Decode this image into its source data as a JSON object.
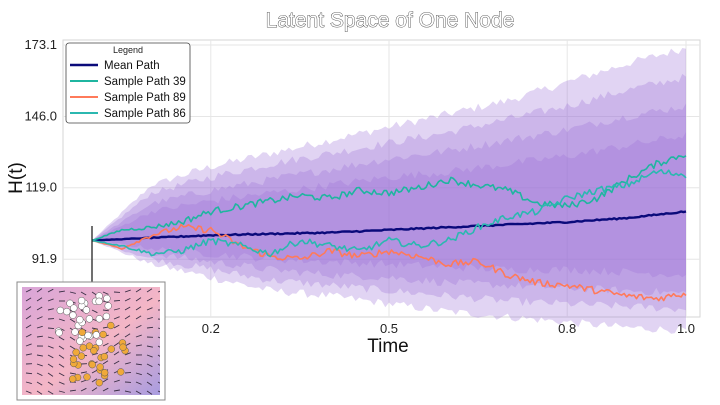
{
  "chart_data": {
    "type": "line",
    "title": "Latent Space of One Node",
    "xlabel": "Time",
    "ylabel": "H(t)",
    "xlim": [
      0.0,
      1.0
    ],
    "ylim": [
      70.0,
      175.0
    ],
    "xticks": [
      0.2,
      0.5,
      0.8,
      1.0
    ],
    "xtick_labels": [
      "0.2",
      "0.5",
      "0.8",
      "1.0"
    ],
    "yticks": [
      91.9,
      119.0,
      146.0,
      173.1
    ],
    "ytick_labels": [
      "91.9",
      "119.0",
      "146.0",
      "173.1"
    ],
    "grid": true,
    "legend": {
      "title": "Legend",
      "placement": "top-left"
    },
    "bands": {
      "color": "#9b6fd6",
      "x": [
        0.0,
        0.1,
        0.2,
        0.3,
        0.4,
        0.5,
        0.6,
        0.7,
        0.8,
        0.9,
        1.0
      ],
      "levels": [
        {
          "lower": [
            99,
            90,
            85,
            80,
            78,
            75,
            72,
            70,
            68,
            66,
            65
          ],
          "upper": [
            99,
            120,
            127,
            132,
            137,
            142,
            147,
            152,
            159,
            166,
            172
          ]
        },
        {
          "lower": [
            99,
            92,
            88,
            84,
            82,
            80,
            78,
            76,
            75,
            74,
            73
          ],
          "upper": [
            99,
            117,
            123,
            128,
            132,
            136,
            140,
            145,
            150,
            156,
            161
          ]
        },
        {
          "lower": [
            99,
            94,
            91,
            88,
            86,
            85,
            83,
            82,
            81,
            80,
            79
          ],
          "upper": [
            99,
            113,
            118,
            122,
            126,
            130,
            133,
            137,
            141,
            146,
            150
          ]
        },
        {
          "lower": [
            99,
            96,
            94,
            92,
            91,
            90,
            89,
            88,
            88,
            87,
            86
          ],
          "upper": [
            99,
            110,
            114,
            117,
            120,
            123,
            125,
            128,
            131,
            135,
            139
          ]
        }
      ]
    },
    "series": [
      {
        "name": "Mean Path",
        "color": "#0a0a7a",
        "width": 2.4,
        "x": [
          0.0,
          0.1,
          0.2,
          0.3,
          0.4,
          0.5,
          0.6,
          0.7,
          0.8,
          0.9,
          1.0
        ],
        "y": [
          99,
          100,
          101,
          101.5,
          102,
          103,
          104,
          105,
          106,
          107.5,
          110
        ]
      },
      {
        "name": "Sample Path 39",
        "color": "#1fb5a0",
        "width": 1.6,
        "x": [
          0.0,
          0.05,
          0.1,
          0.15,
          0.2,
          0.25,
          0.3,
          0.35,
          0.4,
          0.45,
          0.5,
          0.55,
          0.6,
          0.65,
          0.7,
          0.75,
          0.8,
          0.85,
          0.9,
          0.95,
          1.0
        ],
        "y": [
          99,
          103,
          104,
          106,
          110,
          112,
          114,
          116,
          115,
          118,
          117,
          119,
          122,
          120,
          118,
          113,
          112,
          115,
          122,
          128,
          132
        ]
      },
      {
        "name": "Sample Path 89",
        "color": "#ff7a5a",
        "width": 1.6,
        "x": [
          0.0,
          0.05,
          0.1,
          0.15,
          0.2,
          0.25,
          0.3,
          0.35,
          0.4,
          0.45,
          0.5,
          0.55,
          0.6,
          0.65,
          0.7,
          0.75,
          0.8,
          0.85,
          0.9,
          0.95,
          1.0
        ],
        "y": [
          99,
          96,
          101,
          104,
          103,
          97,
          93,
          92,
          95,
          93,
          95,
          93,
          90,
          91,
          86,
          83,
          82,
          80,
          78,
          77,
          79
        ]
      },
      {
        "name": "Sample Path 86",
        "color": "#2bb8b0",
        "width": 1.6,
        "x": [
          0.0,
          0.05,
          0.1,
          0.15,
          0.2,
          0.25,
          0.3,
          0.35,
          0.4,
          0.45,
          0.5,
          0.55,
          0.6,
          0.65,
          0.7,
          0.75,
          0.8,
          0.85,
          0.9,
          0.95,
          1.0
        ],
        "y": [
          99,
          97,
          94,
          95,
          99,
          97,
          94,
          99,
          97,
          95,
          99,
          97,
          99,
          104,
          108,
          110,
          115,
          118,
          120,
          125,
          124
        ]
      }
    ]
  },
  "inset": {
    "background_colors": [
      "#d9a5d8",
      "#f4b6c6",
      "#a89ce0"
    ],
    "point_colors": {
      "light": "#ffffff",
      "dark": "#f0a93a"
    }
  }
}
